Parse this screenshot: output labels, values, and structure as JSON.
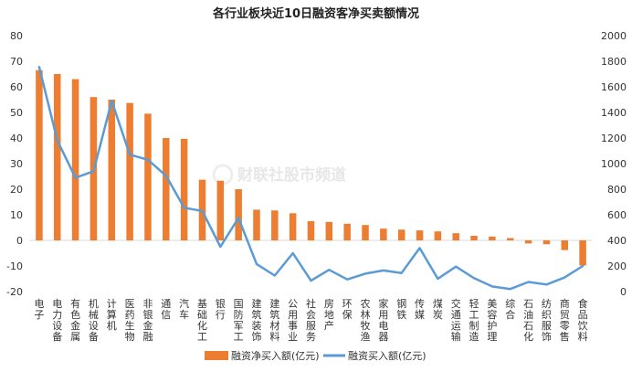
{
  "watermark": "财联社股市频道",
  "chart_data": {
    "type": "bar+line",
    "title": "各行业板块近10日融资客净买卖额情况",
    "categories": [
      "电子",
      "电力设备",
      "有色金属",
      "机械设备",
      "计算机",
      "医药生物",
      "非银金融",
      "通信",
      "汽车",
      "基础化工",
      "银行",
      "国防军工",
      "建筑装饰",
      "建筑材料",
      "公用事业",
      "社会服务",
      "房地产",
      "环保",
      "农林牧渔",
      "家用电器",
      "钢铁",
      "传媒",
      "煤炭",
      "交通运输",
      "轻工制造",
      "美容护理",
      "综合",
      "石油石化",
      "纺织服饰",
      "商贸零售",
      "食品饮料"
    ],
    "series": [
      {
        "name": "融资净买入额(亿元)",
        "type": "bar",
        "axis": "left",
        "color": "#ED7D31",
        "values": [
          66.5,
          65,
          63,
          56,
          55,
          53.7,
          49.5,
          40,
          39.7,
          23.7,
          23.3,
          20,
          12,
          11.7,
          10.6,
          7.5,
          7.2,
          6.5,
          6,
          4.6,
          4.2,
          3.9,
          3.5,
          2.8,
          1.8,
          1.5,
          0.9,
          -1.2,
          -1.5,
          -3.8,
          -9.8
        ]
      },
      {
        "name": "融资买入额(亿元)",
        "type": "line",
        "axis": "right",
        "color": "#5B9BD5",
        "values": [
          1755,
          1180,
          890,
          940,
          1490,
          1070,
          1030,
          905,
          655,
          630,
          350,
          575,
          215,
          125,
          300,
          85,
          170,
          95,
          140,
          165,
          145,
          340,
          100,
          195,
          105,
          40,
          20,
          75,
          55,
          110,
          200
        ]
      }
    ],
    "y_left": {
      "min": -20,
      "max": 80,
      "ticks": [
        "80",
        "70",
        "60",
        "50",
        "40",
        "30",
        "20",
        "10",
        "0",
        "-10",
        "-20"
      ]
    },
    "y_right": {
      "min": 0,
      "max": 2000,
      "ticks": [
        "2000",
        "1800",
        "1600",
        "1400",
        "1200",
        "1000",
        "800",
        "600",
        "400",
        "200",
        "0"
      ]
    },
    "legend_position": "bottom"
  }
}
